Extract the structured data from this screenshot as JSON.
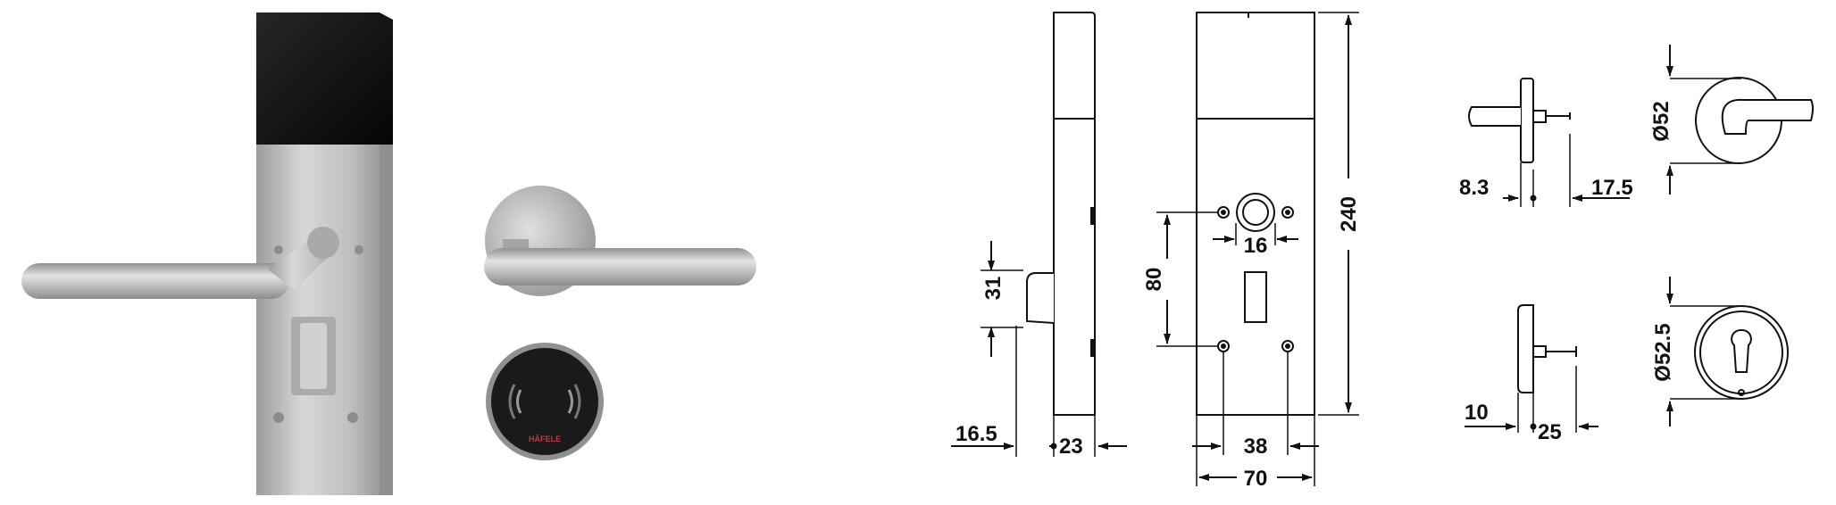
{
  "products": {
    "reader_brand": "HÄFELE"
  },
  "dimensions": {
    "escutcheon_side": {
      "height": "31",
      "offset": "16.5",
      "depth": "23"
    },
    "escutcheon_front": {
      "height": "240",
      "hole_spacing_v": "80",
      "cylinder": "16",
      "hole_spacing_h": "38",
      "width": "70"
    },
    "rose": {
      "diameter": "Ø52",
      "thickness": "8.3",
      "projection": "17.5"
    },
    "key_rose": {
      "diameter": "Ø52.5",
      "thickness": "10",
      "projection": "25"
    }
  },
  "colors": {
    "steel": "#b8babb",
    "black_panel": "#151515",
    "line": "#111111"
  }
}
